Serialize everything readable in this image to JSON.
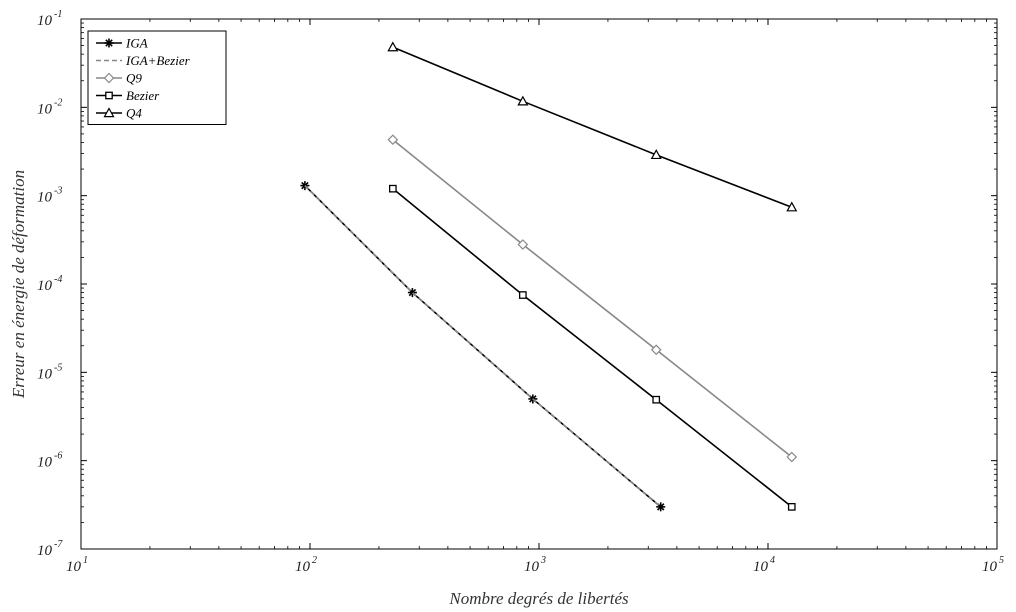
{
  "chart_data": {
    "type": "line",
    "xscale": "log",
    "yscale": "log",
    "xlabel": "Nombre degrés de libertés",
    "ylabel": "Erreur en énergie de déformation",
    "xlim": [
      10,
      100000
    ],
    "ylim": [
      1e-07,
      0.1
    ],
    "xticks": [
      {
        "value": 10,
        "base": "10",
        "exp": "1"
      },
      {
        "value": 100,
        "base": "10",
        "exp": "2"
      },
      {
        "value": 1000,
        "base": "10",
        "exp": "3"
      },
      {
        "value": 10000,
        "base": "10",
        "exp": "4"
      },
      {
        "value": 100000,
        "base": "10",
        "exp": "5"
      }
    ],
    "yticks": [
      {
        "value": 1e-07,
        "base": "10",
        "exp": "-7"
      },
      {
        "value": 1e-06,
        "base": "10",
        "exp": "-6"
      },
      {
        "value": 1e-05,
        "base": "10",
        "exp": "-5"
      },
      {
        "value": 0.0001,
        "base": "10",
        "exp": "-4"
      },
      {
        "value": 0.001,
        "base": "10",
        "exp": "-3"
      },
      {
        "value": 0.01,
        "base": "10",
        "exp": "-2"
      },
      {
        "value": 0.1,
        "base": "10",
        "exp": "-1"
      }
    ],
    "legend_position": "top-left",
    "grid": false,
    "series": [
      {
        "name": "IGA",
        "color": "#000000",
        "marker": "asterisk",
        "dash": "solid",
        "x": [
          95,
          280,
          940,
          3400
        ],
        "y": [
          0.0013,
          8e-05,
          5e-06,
          3e-07
        ]
      },
      {
        "name": "IGA+Bezier",
        "color": "#888888",
        "marker": "none",
        "dash": "dashed",
        "x": [
          95,
          280,
          940,
          3400
        ],
        "y": [
          0.0013,
          8e-05,
          5e-06,
          3e-07
        ]
      },
      {
        "name": "Q9",
        "color": "#888888",
        "marker": "diamond",
        "dash": "solid",
        "x": [
          230,
          850,
          3250,
          12700
        ],
        "y": [
          0.0043,
          0.00028,
          1.8e-05,
          1.1e-06
        ]
      },
      {
        "name": "Bezier",
        "color": "#000000",
        "marker": "square",
        "dash": "solid",
        "x": [
          230,
          850,
          3250,
          12700
        ],
        "y": [
          0.0012,
          7.5e-05,
          4.9e-06,
          3e-07
        ]
      },
      {
        "name": "Q4",
        "color": "#000000",
        "marker": "triangle",
        "dash": "solid",
        "x": [
          230,
          850,
          3250,
          12700
        ],
        "y": [
          0.048,
          0.0117,
          0.0029,
          0.00074
        ]
      }
    ]
  }
}
